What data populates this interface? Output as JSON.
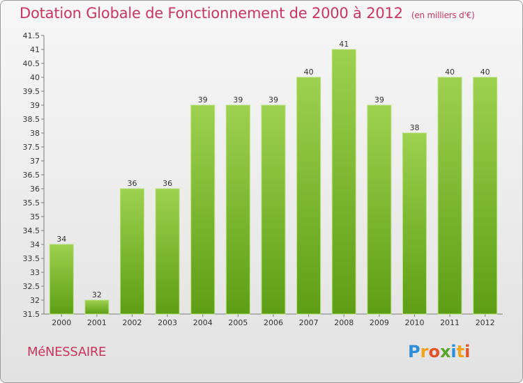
{
  "chart_data": {
    "type": "bar",
    "title": "Dotation Globale de Fonctionnement de 2000 à 2012",
    "unit_note": "(en milliers d'€)",
    "categories": [
      "2000",
      "2001",
      "2002",
      "2003",
      "2004",
      "2005",
      "2006",
      "2007",
      "2008",
      "2009",
      "2010",
      "2011",
      "2012"
    ],
    "values": [
      34,
      32,
      36,
      36,
      39,
      39,
      39,
      40,
      41,
      39,
      38,
      40,
      40
    ],
    "value_labels": [
      "34",
      "32",
      "36",
      "36",
      "39",
      "39",
      "39",
      "40",
      "41",
      "39",
      "38",
      "40",
      "40"
    ],
    "ylim": [
      31.5,
      41.5
    ],
    "yticks": [
      "31.5",
      "32",
      "32.5",
      "33",
      "33.5",
      "34",
      "34.5",
      "35",
      "35.5",
      "36",
      "36.5",
      "37",
      "37.5",
      "38",
      "38.5",
      "39",
      "39.5",
      "40",
      "40.5",
      "41",
      "41.5"
    ],
    "xlabel": "",
    "ylabel": "",
    "grid": false,
    "legend": "none",
    "bar_color_top": "#9dd14f",
    "bar_color_bottom": "#5e9e16"
  },
  "footer": {
    "commune": "MéNESSAIRE"
  },
  "brand": {
    "letters": [
      "P",
      "r",
      "o",
      "x",
      "i",
      "t",
      "i"
    ]
  }
}
